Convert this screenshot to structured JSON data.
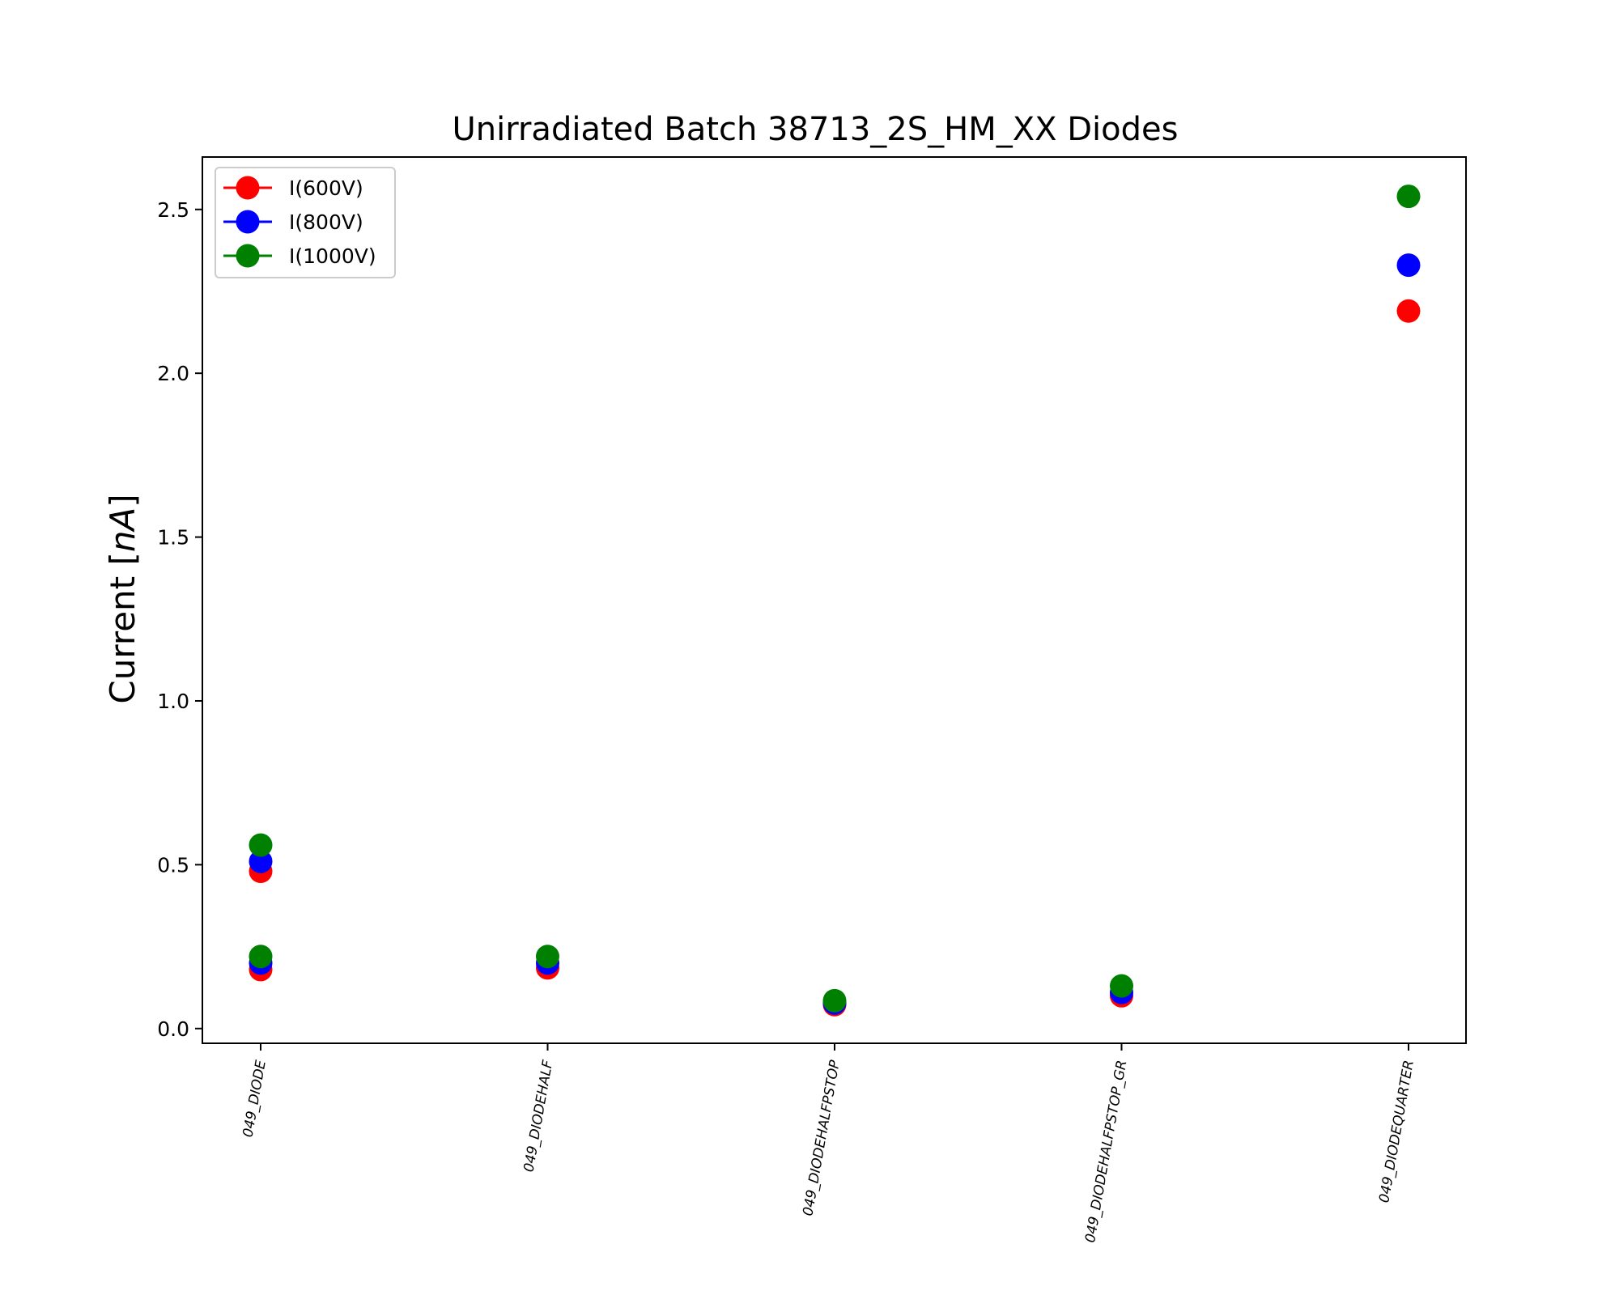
{
  "chart_data": {
    "type": "scatter",
    "title": "Unirradiated Batch 38713_2S_HM_XX Diodes",
    "xlabel": "",
    "ylabel_main": "Current [",
    "ylabel_unit": "nA",
    "ylabel_close": "]",
    "categories": [
      "049_DIODE",
      "049_DIODEHALF",
      "049_DIODEHALFPSTOP",
      "049_DIODEHALFPSTOP_GR",
      "049_DIODEQUARTER"
    ],
    "ylim": [
      -0.045,
      2.66
    ],
    "yticks": [
      0.0,
      0.5,
      1.0,
      1.5,
      2.0,
      2.5
    ],
    "ytick_labels": [
      "0.0",
      "0.5",
      "1.0",
      "1.5",
      "2.0",
      "2.5"
    ],
    "grid": false,
    "legend_position": "top-left",
    "series": [
      {
        "name": "I(600V)",
        "color": "#ff0000",
        "points": [
          {
            "category": "049_DIODE",
            "y": 0.48
          },
          {
            "category": "049_DIODE",
            "y": 0.18
          },
          {
            "category": "049_DIODEHALF",
            "y": 0.185
          },
          {
            "category": "049_DIODEHALFPSTOP",
            "y": 0.073
          },
          {
            "category": "049_DIODEHALFPSTOP_GR",
            "y": 0.1
          },
          {
            "category": "049_DIODEQUARTER",
            "y": 2.19
          }
        ]
      },
      {
        "name": "I(800V)",
        "color": "#0000ff",
        "points": [
          {
            "category": "049_DIODE",
            "y": 0.51
          },
          {
            "category": "049_DIODE",
            "y": 0.2
          },
          {
            "category": "049_DIODEHALF",
            "y": 0.2
          },
          {
            "category": "049_DIODEHALFPSTOP",
            "y": 0.078
          },
          {
            "category": "049_DIODEHALFPSTOP_GR",
            "y": 0.11
          },
          {
            "category": "049_DIODEQUARTER",
            "y": 2.33
          }
        ]
      },
      {
        "name": "I(1000V)",
        "color": "#008000",
        "points": [
          {
            "category": "049_DIODE",
            "y": 0.56
          },
          {
            "category": "049_DIODE",
            "y": 0.22
          },
          {
            "category": "049_DIODEHALF",
            "y": 0.22
          },
          {
            "category": "049_DIODEHALFPSTOP",
            "y": 0.085
          },
          {
            "category": "049_DIODEHALFPSTOP_GR",
            "y": 0.13
          },
          {
            "category": "049_DIODEQUARTER",
            "y": 2.54
          }
        ]
      }
    ]
  }
}
